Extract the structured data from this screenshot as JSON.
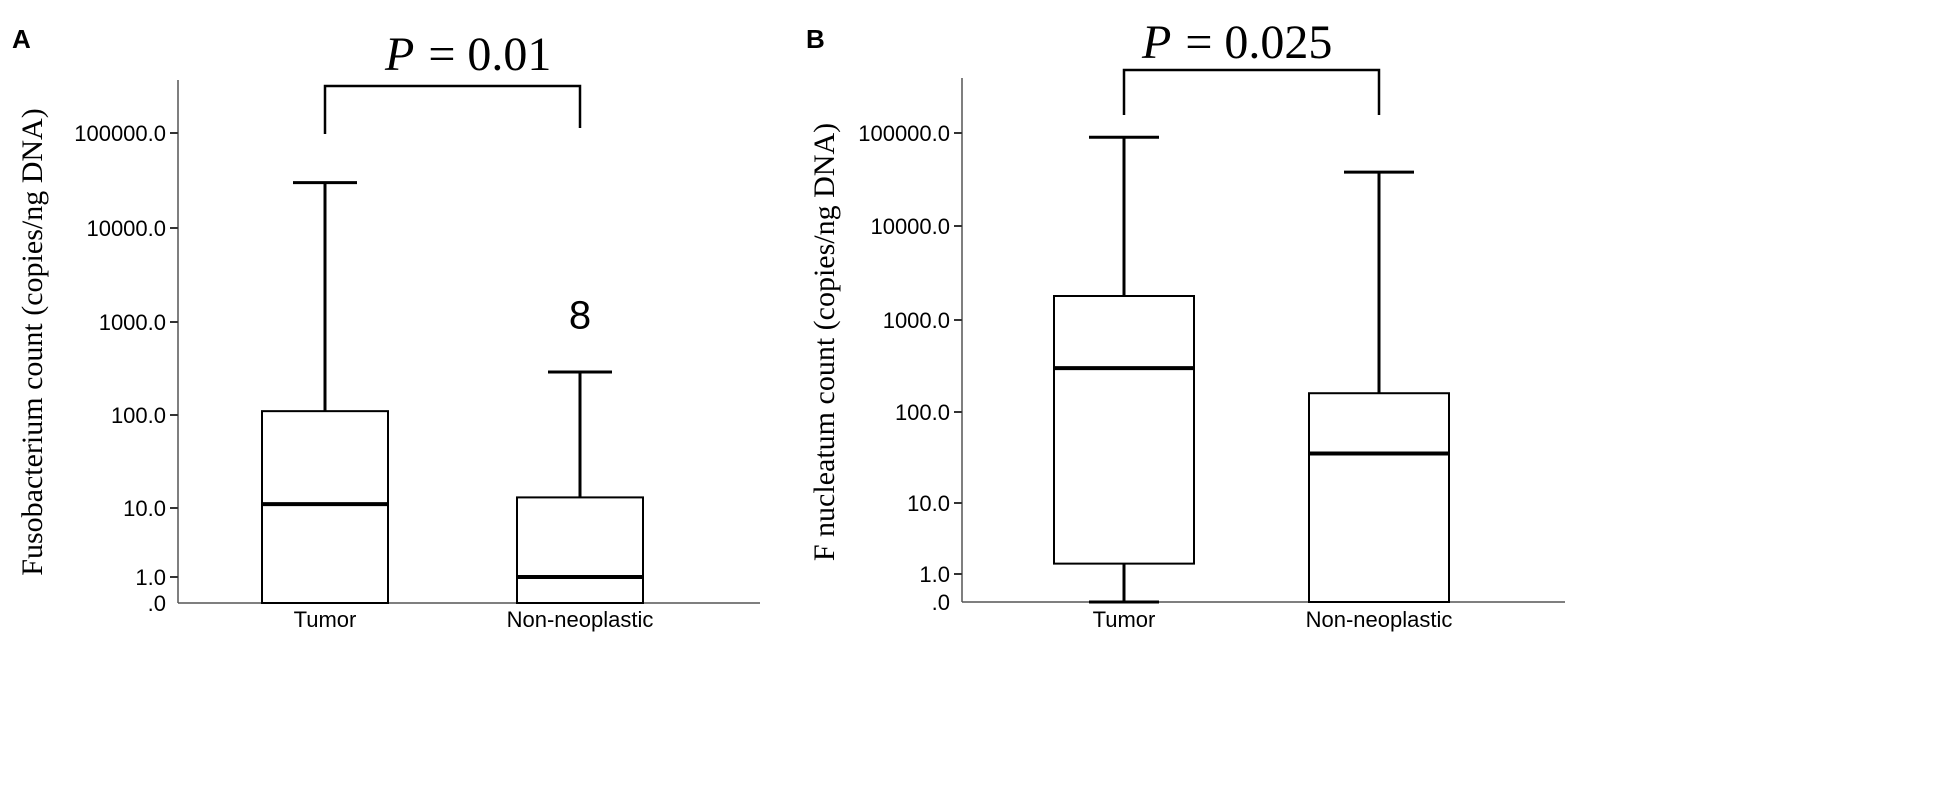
{
  "chart_data": [
    {
      "type": "box",
      "panel": "A",
      "annotation": {
        "label": "P",
        "eq": "= ",
        "value": "0.01"
      },
      "ylabel": "Fusobacterium count (copies/ng DNA)",
      "xlabel": "",
      "yscale": "log-like",
      "yticks": [
        0,
        1,
        10,
        100,
        1000,
        10000,
        100000
      ],
      "ytick_labels": [
        ".0",
        "1.0",
        "10.0",
        "100.0",
        "1000.0",
        "10000.0",
        "100000.0"
      ],
      "categories": [
        "Tumor",
        "Non-neoplastic"
      ],
      "boxes": [
        {
          "category": "Tumor",
          "min": 0,
          "q1": 0,
          "median": 11,
          "q3": 110,
          "max": 30000
        },
        {
          "category": "Non-neoplastic",
          "min": 0,
          "q1": 0,
          "median": 1,
          "q3": 13,
          "max": 290,
          "outliers": [
            1200
          ]
        }
      ],
      "outlier_symbol": "8"
    },
    {
      "type": "box",
      "panel": "B",
      "annotation": {
        "label": "P",
        "eq": "= ",
        "value": "0.025"
      },
      "ylabel": "F nucleatum count (copies/ng DNA)",
      "xlabel": "",
      "yscale": "log-like",
      "yticks": [
        0,
        1,
        10,
        100,
        1000,
        10000,
        100000
      ],
      "ytick_labels": [
        ".0",
        "1.0",
        "10.0",
        "100.0",
        "1000.0",
        "10000.0",
        "100000.0"
      ],
      "categories": [
        "Tumor",
        "Non-neoplastic"
      ],
      "boxes": [
        {
          "category": "Tumor",
          "min": 0,
          "q1": 1.4,
          "median": 300,
          "q3": 1800,
          "max": 90000
        },
        {
          "category": "Non-neoplastic",
          "min": 0,
          "q1": 0,
          "median": 35,
          "q3": 160,
          "max": 38000
        }
      ]
    }
  ]
}
